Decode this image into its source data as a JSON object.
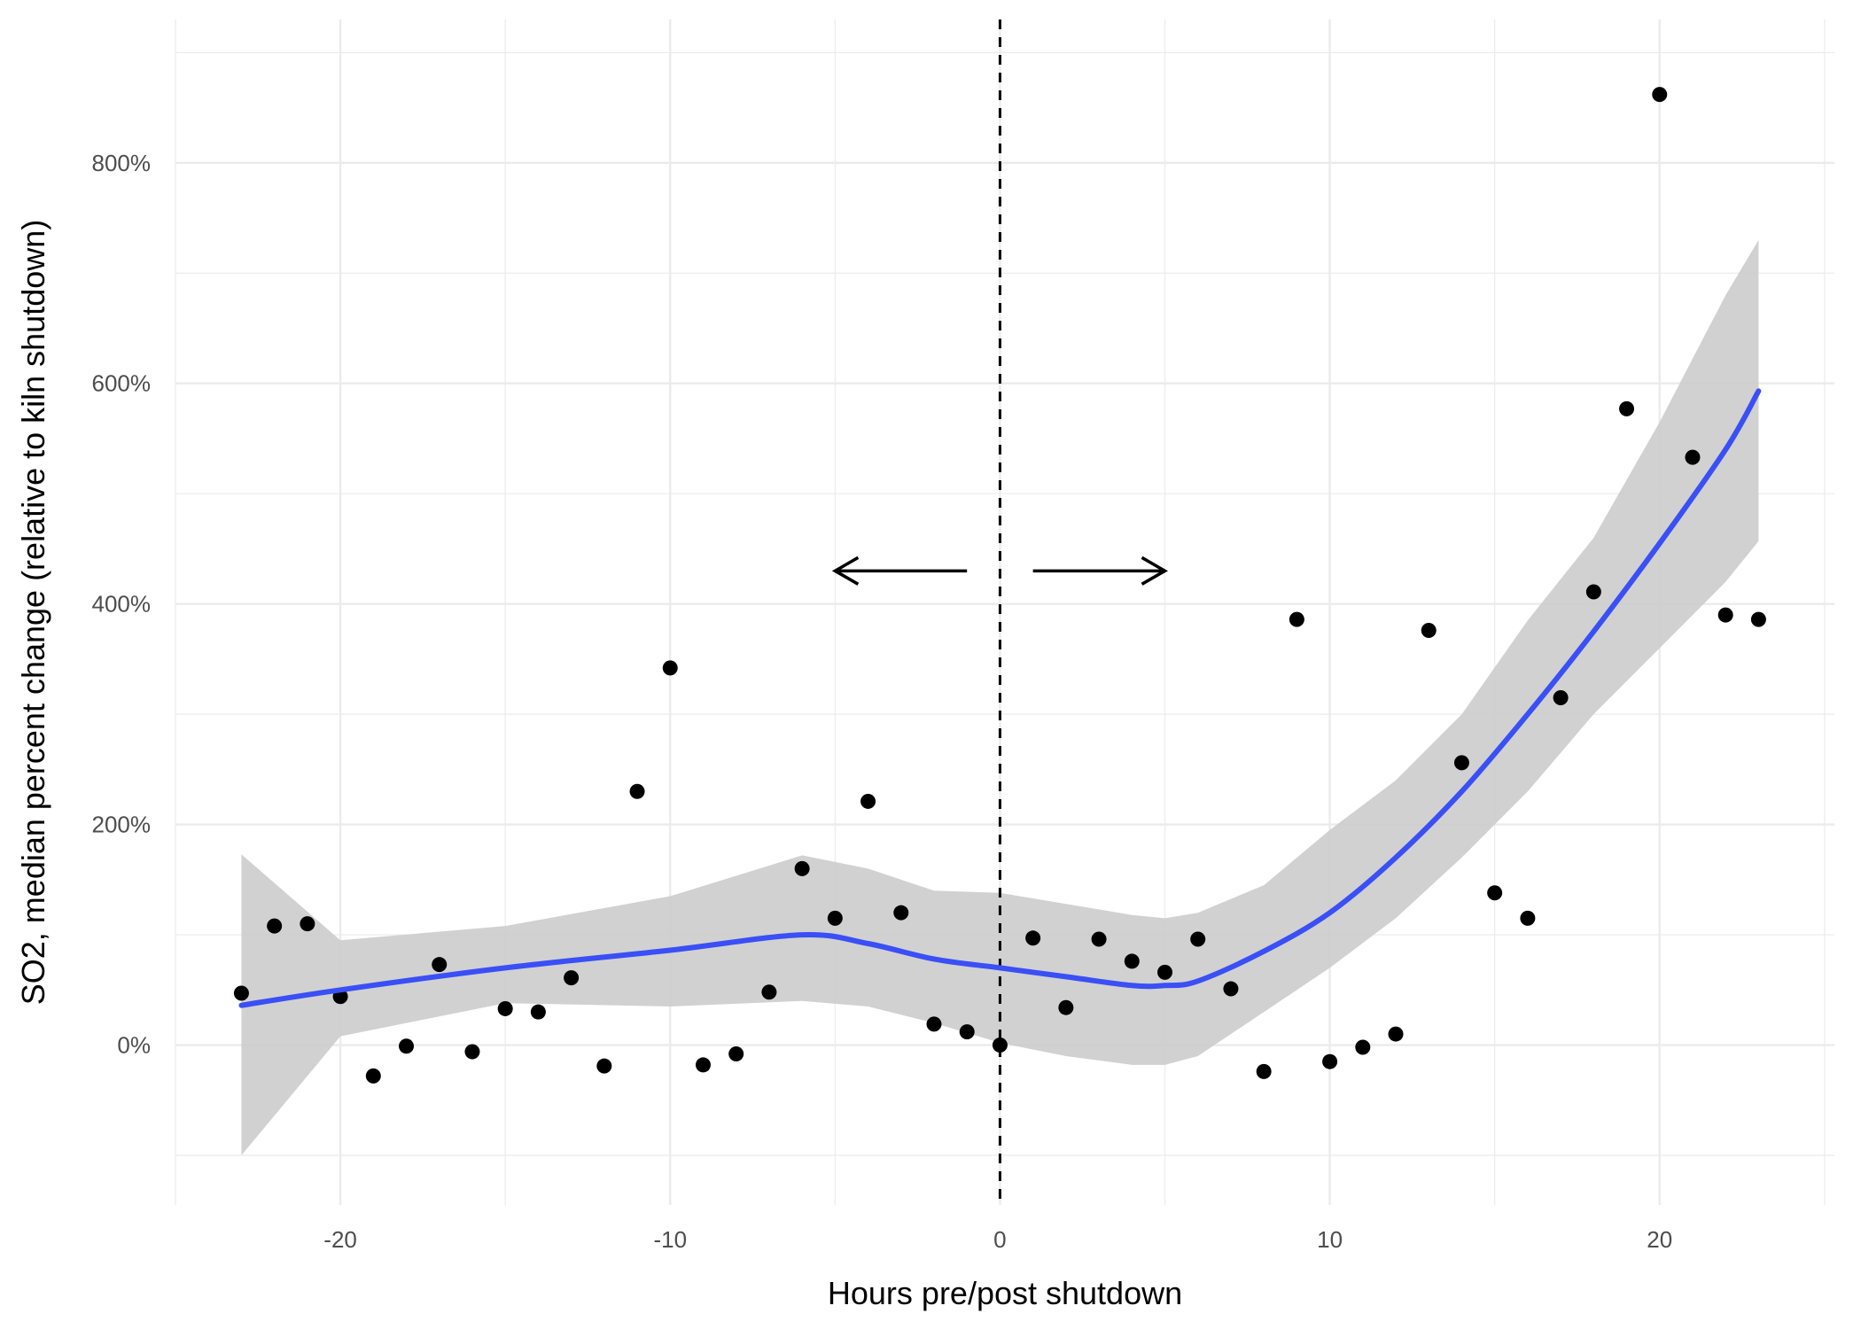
{
  "chart_data": {
    "type": "scatter",
    "xlabel": "Hours pre/post shutdown",
    "ylabel": "SO2, median percent change (relative to kiln shutdown)",
    "xlim": [
      -25,
      25.3
    ],
    "ylim": [
      -145,
      930
    ],
    "x_ticks": [
      -20,
      -10,
      0,
      10,
      20
    ],
    "x_tick_labels": [
      "-20",
      "-10",
      "0",
      "10",
      "20"
    ],
    "y_ticks": [
      0,
      200,
      400,
      600,
      800
    ],
    "y_tick_labels": [
      "0%",
      "200%",
      "400%",
      "600%",
      "800%"
    ],
    "grid": true,
    "vertical_reference_line": 0,
    "annotations": [
      {
        "type": "arrow",
        "direction": "left",
        "from": [
          -1,
          430
        ],
        "to": [
          -5,
          430
        ]
      },
      {
        "type": "arrow",
        "direction": "right",
        "from": [
          1,
          430
        ],
        "to": [
          5,
          430
        ]
      }
    ],
    "points": {
      "x": [
        -23,
        -22,
        -21,
        -20,
        -19,
        -18,
        -17,
        -16,
        -15,
        -14,
        -13,
        -12,
        -11,
        -10,
        -9,
        -8,
        -7,
        -6,
        -5,
        -4,
        -3,
        -2,
        -1,
        0,
        1,
        2,
        3,
        4,
        5,
        6,
        7,
        8,
        9,
        10,
        11,
        12,
        13,
        14,
        15,
        16,
        17,
        18,
        19,
        20,
        21,
        22,
        23
      ],
      "y": [
        47,
        108,
        110,
        44,
        -28,
        -1,
        73,
        -6,
        33,
        30,
        61,
        -19,
        230,
        342,
        -18,
        -8,
        48,
        160,
        115,
        221,
        120,
        19,
        12,
        0,
        97,
        34,
        96,
        76,
        66,
        96,
        51,
        -24,
        386,
        -15,
        -2,
        10,
        376,
        256,
        138,
        115,
        315,
        411,
        577,
        862,
        533,
        390,
        386
      ]
    },
    "smooth": {
      "color": "#3a4ff5",
      "ribbon_color": "#cccccc",
      "x": [
        -23,
        -20,
        -15,
        -10,
        -6,
        -4,
        -2,
        0,
        2,
        4,
        5,
        6,
        8,
        10,
        12,
        14,
        16,
        18,
        20,
        22,
        23
      ],
      "y": [
        36,
        50,
        70,
        86,
        100,
        92,
        78,
        70,
        62,
        54,
        54,
        58,
        85,
        120,
        170,
        230,
        300,
        375,
        455,
        540,
        593
      ],
      "lower": [
        -100,
        8,
        38,
        35,
        40,
        35,
        20,
        2,
        -10,
        -18,
        -18,
        -10,
        30,
        70,
        115,
        170,
        230,
        300,
        360,
        420,
        457
      ],
      "upper": [
        173,
        95,
        108,
        135,
        172,
        160,
        140,
        138,
        128,
        118,
        115,
        120,
        145,
        195,
        240,
        300,
        385,
        460,
        565,
        680,
        730
      ]
    }
  }
}
